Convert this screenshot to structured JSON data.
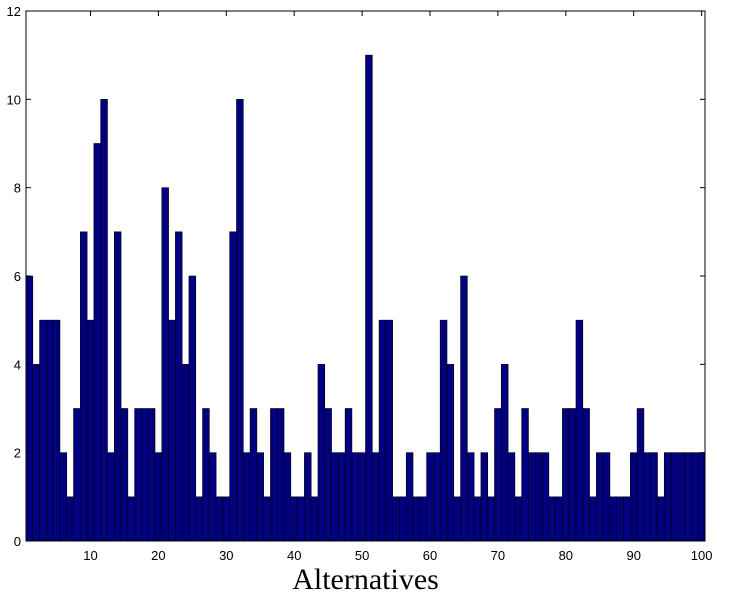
{
  "chart_data": {
    "type": "bar",
    "title": "",
    "xlabel": "Alternatives",
    "ylabel": "",
    "xlim": [
      0.5,
      100.5
    ],
    "ylim": [
      0,
      12
    ],
    "grid": false,
    "bar_color": "#000080",
    "edge_color": "#000000",
    "x_ticks": [
      10,
      20,
      30,
      40,
      50,
      60,
      70,
      80,
      90,
      100
    ],
    "x_tick_labels": [
      "10",
      "20",
      "30",
      "40",
      "50",
      "60",
      "70",
      "80",
      "90",
      "100"
    ],
    "y_ticks": [
      0,
      2,
      4,
      6,
      8,
      10,
      12
    ],
    "y_tick_labels": [
      "0",
      "2",
      "4",
      "6",
      "8",
      "10",
      "12"
    ],
    "categories": [
      1,
      2,
      3,
      4,
      5,
      6,
      7,
      8,
      9,
      10,
      11,
      12,
      13,
      14,
      15,
      16,
      17,
      18,
      19,
      20,
      21,
      22,
      23,
      24,
      25,
      26,
      27,
      28,
      29,
      30,
      31,
      32,
      33,
      34,
      35,
      36,
      37,
      38,
      39,
      40,
      41,
      42,
      43,
      44,
      45,
      46,
      47,
      48,
      49,
      50,
      51,
      52,
      53,
      54,
      55,
      56,
      57,
      58,
      59,
      60,
      61,
      62,
      63,
      64,
      65,
      66,
      67,
      68,
      69,
      70,
      71,
      72,
      73,
      74,
      75,
      76,
      77,
      78,
      79,
      80,
      81,
      82,
      83,
      84,
      85,
      86,
      87,
      88,
      89,
      90,
      91,
      92,
      93,
      94,
      95,
      96,
      97,
      98,
      99,
      100
    ],
    "values": [
      6,
      4,
      5,
      5,
      5,
      2,
      1,
      3,
      7,
      5,
      9,
      10,
      2,
      7,
      3,
      1,
      3,
      3,
      3,
      2,
      8,
      5,
      7,
      4,
      6,
      1,
      3,
      2,
      1,
      1,
      7,
      10,
      2,
      3,
      2,
      1,
      3,
      3,
      2,
      1,
      1,
      2,
      1,
      4,
      3,
      2,
      2,
      3,
      2,
      2,
      11,
      2,
      5,
      5,
      1,
      1,
      2,
      1,
      1,
      2,
      2,
      5,
      4,
      1,
      6,
      2,
      1,
      2,
      1,
      3,
      4,
      2,
      1,
      3,
      2,
      2,
      2,
      1,
      1,
      3,
      3,
      5,
      3,
      1,
      2,
      2,
      1,
      1,
      1,
      2,
      3,
      2,
      2,
      1,
      2,
      2,
      2,
      2,
      2,
      2
    ]
  }
}
